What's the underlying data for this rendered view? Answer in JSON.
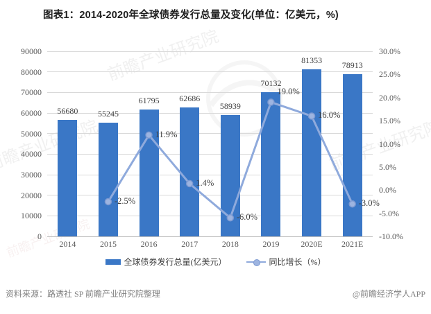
{
  "colors": {
    "bar": "#3A77C6",
    "line": "#8FAADC",
    "marker_fill": "#9DB4E0",
    "marker_stroke": "#7C99D1",
    "grid": "#D9D9D9",
    "axis_line": "#BFBFBF",
    "axis_text": "#595959",
    "label_text": "#3F3F3F",
    "title_text": "#1F1F1F",
    "source_text": "#808080"
  },
  "chart_data": {
    "type": "combo-bar-line",
    "title": "图表1：2014-2020年全球债券发行总量及变化(单位：亿美元，%)",
    "categories": [
      "2014",
      "2015",
      "2016",
      "2017",
      "2018",
      "2019",
      "2020E",
      "2021E"
    ],
    "series": [
      {
        "name": "全球债券发行总量(亿美元）",
        "type": "bar",
        "axis": "left",
        "values": [
          56680,
          55245,
          61795,
          62686,
          58939,
          70132,
          81353,
          78913
        ],
        "labels": [
          "56680",
          "55245",
          "61795",
          "62686",
          "58939",
          "70132",
          "81353",
          "78913"
        ]
      },
      {
        "name": "同比增长（%）",
        "type": "line",
        "axis": "right",
        "values": [
          null,
          -2.5,
          11.9,
          1.4,
          -6.0,
          19.0,
          16.0,
          -3.0
        ],
        "labels": [
          "",
          "-2.5%",
          "11.9%",
          "1.4%",
          "-6.0%",
          "19.0%",
          "16.0%",
          "-3.0%"
        ]
      }
    ],
    "left_axis": {
      "min": 0,
      "max": 90000,
      "step": 10000,
      "ticks": [
        "90000",
        "80000",
        "70000",
        "60000",
        "50000",
        "40000",
        "30000",
        "20000",
        "10000",
        "0"
      ]
    },
    "right_axis": {
      "min": -10,
      "max": 30,
      "step": 5,
      "ticks": [
        "30.0%",
        "25.0%",
        "20.0%",
        "15.0%",
        "10.0%",
        "5.0%",
        "0.0%",
        "-5.0%",
        "-10.0%"
      ]
    },
    "grid": true,
    "legend_position": "bottom"
  },
  "footer": {
    "source": "资料来源：路透社 SP 前瞻产业研究院整理",
    "credit": "@前瞻经济学人APP"
  },
  "watermark": {
    "text": "前瞻产业研究院"
  }
}
